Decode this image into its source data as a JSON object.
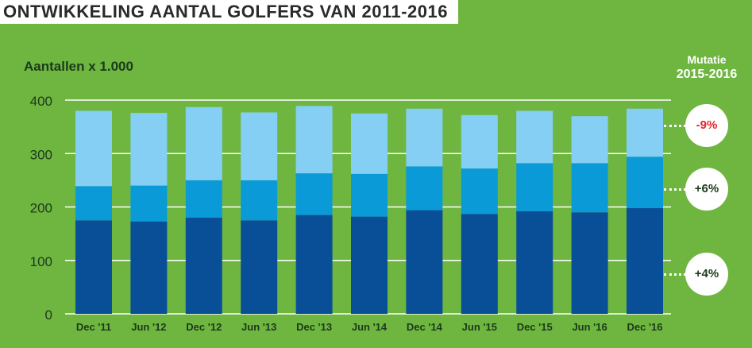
{
  "chart_data": {
    "type": "bar",
    "stacked": true,
    "title": "ONTWIKKELING AANTAL GOLFERS VAN 2011-2016",
    "ylabel": "Aantallen x 1.000",
    "categories": [
      "Dec '11",
      "Jun '12",
      "Dec '12",
      "Jun '13",
      "Dec '13",
      "Jun '14",
      "Dec '14",
      "Jun '15",
      "Dec '15",
      "Jun '16",
      "Dec '16"
    ],
    "series": [
      {
        "values": [
          175,
          173,
          180,
          175,
          185,
          182,
          194,
          187,
          192,
          190,
          198
        ]
      },
      {
        "values": [
          64,
          67,
          70,
          75,
          78,
          80,
          82,
          85,
          90,
          92,
          96
        ]
      },
      {
        "values": [
          141,
          136,
          137,
          127,
          126,
          113,
          108,
          100,
          98,
          88,
          90
        ]
      }
    ],
    "ylim": [
      0,
      400
    ],
    "yticks": [
      0,
      100,
      200,
      300,
      400
    ],
    "grid": true,
    "colors": [
      "#084f98",
      "#0a9ad8",
      "#84cff3"
    ],
    "mutation_title_line1": "Mutatie",
    "mutation_title_line2": "2015-2016",
    "mutations": [
      {
        "label": "-9%",
        "color": "#e8232d",
        "level": 352
      },
      {
        "label": "+6%",
        "color": "#1b3a1b",
        "level": 234
      },
      {
        "label": "+4%",
        "color": "#1b3a1b",
        "level": 74
      }
    ]
  }
}
